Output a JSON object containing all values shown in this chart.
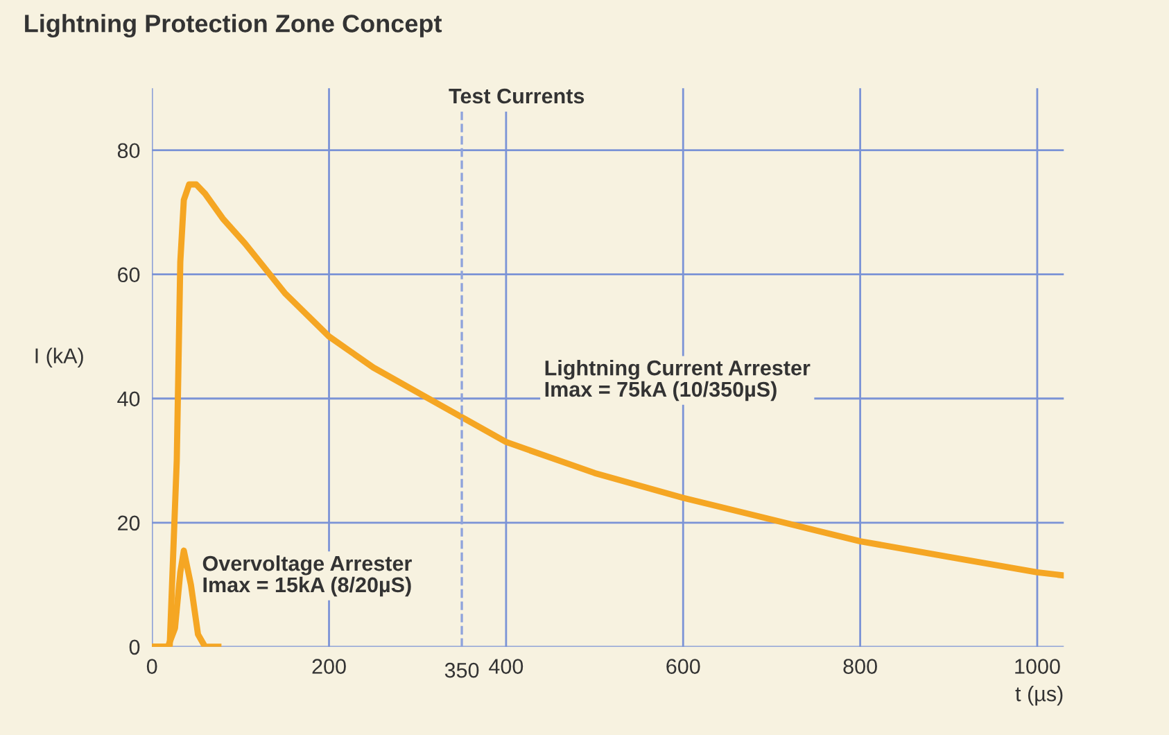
{
  "chart_data": {
    "type": "line",
    "title": "Lightning Protection Zone Concept",
    "xlabel": "t (µs)",
    "ylabel": "I (kA)",
    "annotations": [
      "Test Currents",
      "Lightning Current Arrester\nImax = 75kA (10/350µS)",
      "Overvoltage Arrester\nImax = 15kA (8/20µS)"
    ],
    "series": [
      {
        "color": "#f5a623",
        "x": [
          0,
          20,
          28,
          32,
          36,
          42,
          50,
          60,
          80,
          105,
          150,
          200,
          250,
          300,
          350,
          400,
          500,
          600,
          700,
          800,
          900,
          1000,
          1030
        ],
        "values": [
          0,
          0,
          30,
          62,
          72,
          74.5,
          74.5,
          73,
          69,
          65,
          57,
          50,
          45,
          41,
          37,
          33,
          28,
          24,
          20.5,
          17,
          14.5,
          12,
          11.5
        ]
      },
      {
        "color": "#f5a623",
        "x": [
          0,
          18,
          26,
          32,
          36,
          44,
          52,
          60,
          75
        ],
        "values": [
          0,
          0,
          3,
          12,
          15.5,
          10,
          2,
          0,
          0
        ]
      }
    ],
    "xlim": [
      0,
      1030
    ],
    "ylim": [
      0,
      90
    ],
    "xticks": [
      0,
      200,
      400,
      600,
      800,
      1000
    ],
    "yticks": [
      0,
      20,
      40,
      60,
      80
    ],
    "ref_lines": [
      {
        "axis": "x",
        "value": 350,
        "label": "350",
        "line_style": "dashed",
        "color": "#8fa3dc"
      }
    ],
    "grid": true
  }
}
